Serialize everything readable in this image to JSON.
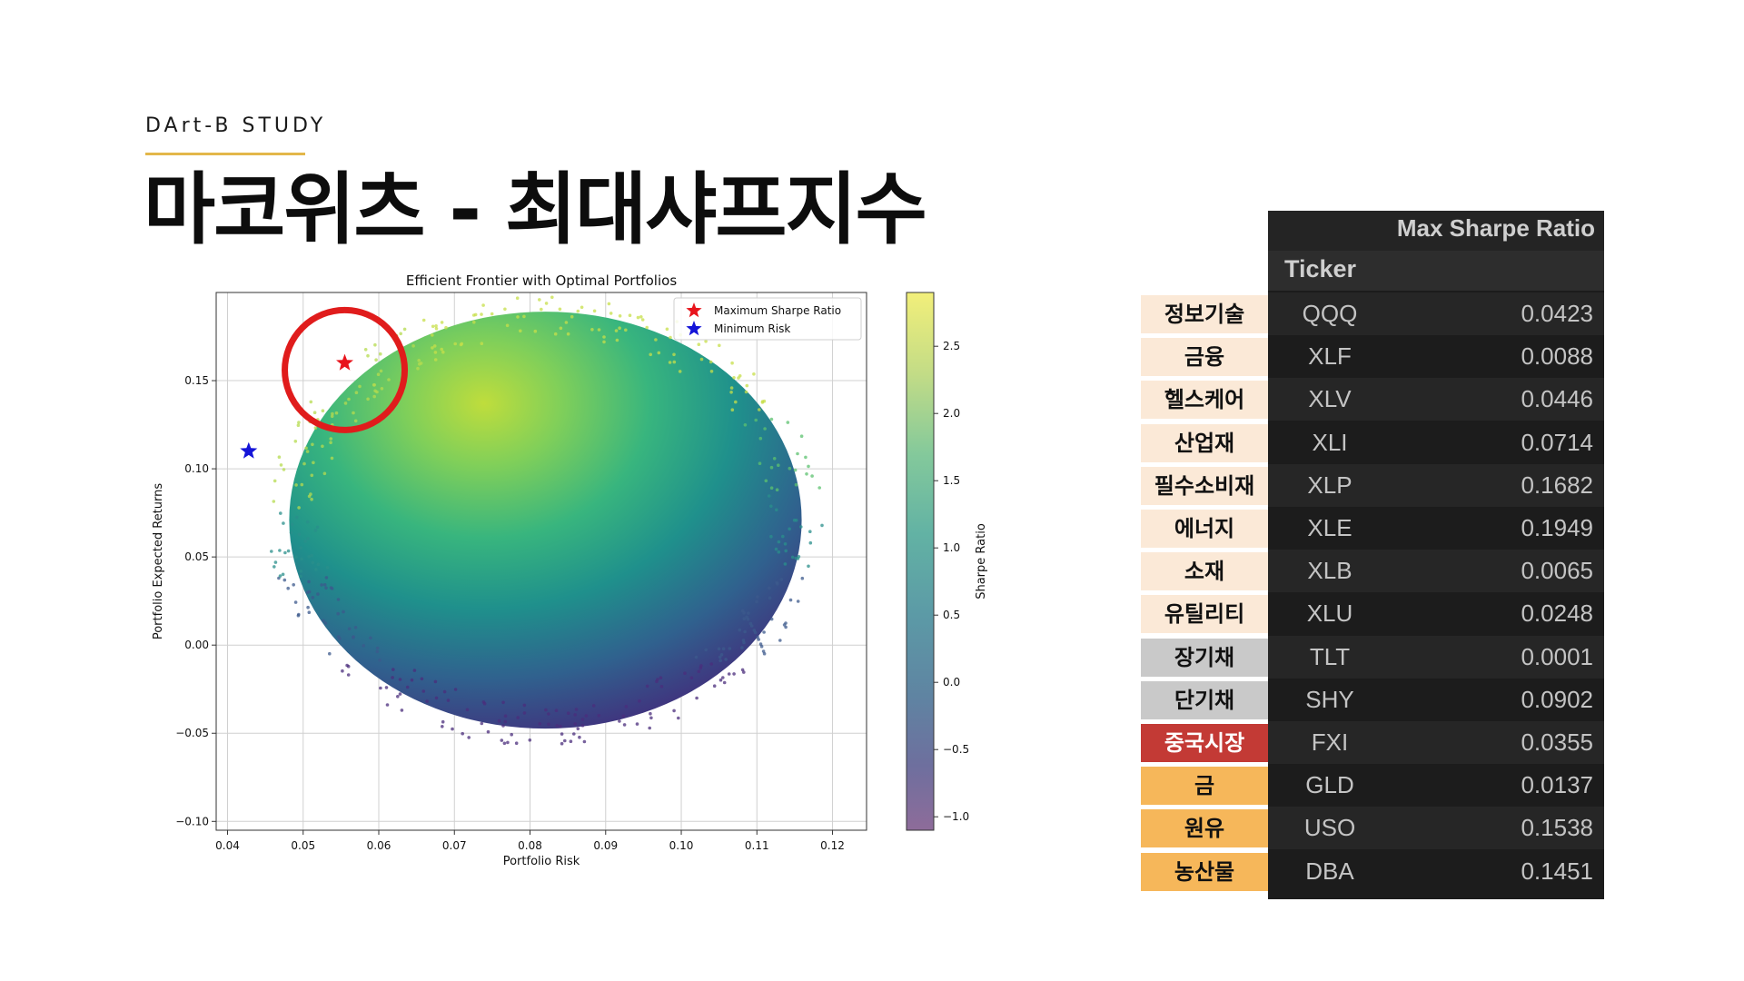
{
  "slide": {
    "subtitle": "DArt-B STUDY",
    "title": "마코위츠 - 최대샤프지수",
    "accent_color": "#e3b74a"
  },
  "chart_data": {
    "type": "scatter",
    "title": "Efficient Frontier with Optimal Portfolios",
    "xlabel": "Portfolio Risk",
    "ylabel": "Portfolio Expected Returns",
    "xlim": [
      0.0385,
      0.1245
    ],
    "ylim": [
      -0.105,
      0.2
    ],
    "xticks": [
      0.04,
      0.05,
      0.06,
      0.07,
      0.08,
      0.09,
      0.1,
      0.11,
      0.12
    ],
    "xtick_labels": [
      "0.04",
      "0.05",
      "0.06",
      "0.07",
      "0.08",
      "0.09",
      "0.10",
      "0.11",
      "0.12"
    ],
    "yticks": [
      -0.1,
      -0.05,
      0.0,
      0.05,
      0.1,
      0.15
    ],
    "ytick_labels": [
      "−0.10",
      "−0.05",
      "0.00",
      "0.05",
      "0.10",
      "0.15"
    ],
    "grid": true,
    "colormap": "viridis",
    "colorbar": {
      "label": "Sharpe Ratio",
      "range": [
        -1.1,
        2.9
      ],
      "ticks": [
        -1.0,
        -0.5,
        0.0,
        0.5,
        1.0,
        1.5,
        2.0,
        2.5
      ],
      "tick_labels": [
        "−1.0",
        "−0.5",
        "0.0",
        "0.5",
        "1.0",
        "1.5",
        "2.0",
        "2.5"
      ]
    },
    "cloud": {
      "description_only_for_rendering": false,
      "center_risk": 0.083,
      "center_return": 0.075,
      "risk_range": [
        0.043,
        0.12
      ],
      "return_range": [
        -0.095,
        0.18
      ]
    },
    "legend": {
      "position": "upper right",
      "entries": [
        {
          "label": "Maximum Sharpe Ratio",
          "color": "#e8141c",
          "marker": "star"
        },
        {
          "label": "Minimum Risk",
          "color": "#1414d8",
          "marker": "star"
        }
      ]
    },
    "special_points": [
      {
        "name": "Maximum Sharpe Ratio",
        "risk": 0.0555,
        "return": 0.16,
        "color": "#e8141c"
      },
      {
        "name": "Minimum Risk",
        "risk": 0.0428,
        "return": 0.11,
        "color": "#1414d8"
      }
    ],
    "highlight_circle": {
      "risk": 0.0555,
      "return": 0.156,
      "color": "#e01c1c"
    }
  },
  "table": {
    "title": "Max Sharpe Ratio",
    "column_header": "Ticker",
    "rows": [
      {
        "sector": "정보기술",
        "ticker": "QQQ",
        "weight": "0.0423",
        "sector_color": "#fbe9d7",
        "text_color": "#111111"
      },
      {
        "sector": "금융",
        "ticker": "XLF",
        "weight": "0.0088",
        "sector_color": "#fbe9d7",
        "text_color": "#111111"
      },
      {
        "sector": "헬스케어",
        "ticker": "XLV",
        "weight": "0.0446",
        "sector_color": "#fbe9d7",
        "text_color": "#111111"
      },
      {
        "sector": "산업재",
        "ticker": "XLI",
        "weight": "0.0714",
        "sector_color": "#fbe9d7",
        "text_color": "#111111"
      },
      {
        "sector": "필수소비재",
        "ticker": "XLP",
        "weight": "0.1682",
        "sector_color": "#fbe9d7",
        "text_color": "#111111"
      },
      {
        "sector": "에너지",
        "ticker": "XLE",
        "weight": "0.1949",
        "sector_color": "#fbe9d7",
        "text_color": "#111111"
      },
      {
        "sector": "소재",
        "ticker": "XLB",
        "weight": "0.0065",
        "sector_color": "#fbe9d7",
        "text_color": "#111111"
      },
      {
        "sector": "유틸리티",
        "ticker": "XLU",
        "weight": "0.0248",
        "sector_color": "#fbe9d7",
        "text_color": "#111111"
      },
      {
        "sector": "장기채",
        "ticker": "TLT",
        "weight": "0.0001",
        "sector_color": "#c9c9c9",
        "text_color": "#111111"
      },
      {
        "sector": "단기채",
        "ticker": "SHY",
        "weight": "0.0902",
        "sector_color": "#c9c9c9",
        "text_color": "#111111"
      },
      {
        "sector": "중국시장",
        "ticker": "FXI",
        "weight": "0.0355",
        "sector_color": "#c33a35",
        "text_color": "#ffffff"
      },
      {
        "sector": "금",
        "ticker": "GLD",
        "weight": "0.0137",
        "sector_color": "#f6b75a",
        "text_color": "#111111"
      },
      {
        "sector": "원유",
        "ticker": "USO",
        "weight": "0.1538",
        "sector_color": "#f6b75a",
        "text_color": "#111111"
      },
      {
        "sector": "농산물",
        "ticker": "DBA",
        "weight": "0.1451",
        "sector_color": "#f6b75a",
        "text_color": "#111111"
      }
    ]
  }
}
